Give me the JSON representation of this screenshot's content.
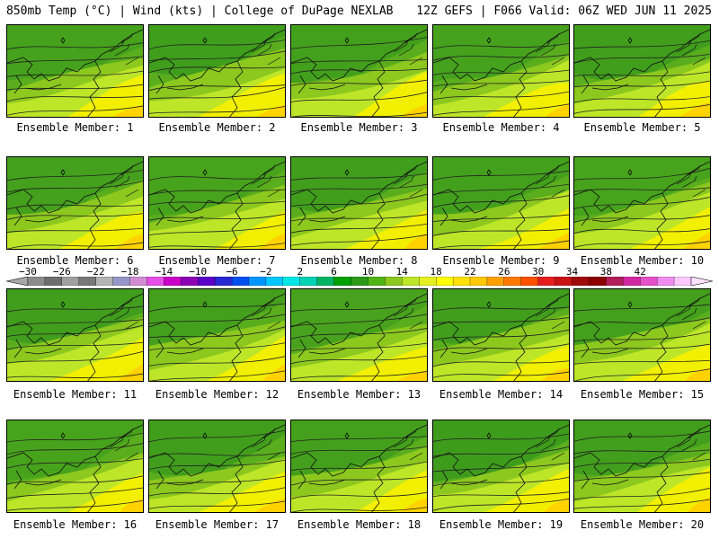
{
  "header": {
    "title": "850mb Temp (°C) | Wind (kts) | College of DuPage NEXLAB",
    "run_info": "12Z GEFS | F066 Valid: 06Z WED JUN 11 2025"
  },
  "colorbar": {
    "labels": [
      "-30",
      "-26",
      "-22",
      "-18",
      "-14",
      "-10",
      "-6",
      "-2",
      "2",
      "6",
      "10",
      "14",
      "18",
      "22",
      "26",
      "30",
      "34",
      "38",
      "42"
    ],
    "colors": [
      "#8c8c8c",
      "#6e6e6e",
      "#a0a0a0",
      "#787878",
      "#b4b4b4",
      "#9696c8",
      "#d28cd2",
      "#e650e6",
      "#c800c8",
      "#8c00b4",
      "#5a00c8",
      "#2828d2",
      "#0050f0",
      "#0096ff",
      "#00c8ff",
      "#00e6e6",
      "#00d2b4",
      "#00b464",
      "#00a000",
      "#2a9a16",
      "#50b414",
      "#8cc81e",
      "#bee628",
      "#e6f01e",
      "#ffff00",
      "#ffe100",
      "#ffc800",
      "#ffa000",
      "#ff7800",
      "#ff5000",
      "#e61e1e",
      "#c81414",
      "#a00a0a",
      "#8c0000",
      "#b41e5a",
      "#d228a0",
      "#e650c8",
      "#f08cf0",
      "#ffc8ff"
    ]
  },
  "panels": [
    {
      "label": "Ensemble Member: 1"
    },
    {
      "label": "Ensemble Member: 2"
    },
    {
      "label": "Ensemble Member: 3"
    },
    {
      "label": "Ensemble Member: 4"
    },
    {
      "label": "Ensemble Member: 5"
    },
    {
      "label": "Ensemble Member: 6"
    },
    {
      "label": "Ensemble Member: 7"
    },
    {
      "label": "Ensemble Member: 8"
    },
    {
      "label": "Ensemble Member: 9"
    },
    {
      "label": "Ensemble Member: 10"
    },
    {
      "label": "Ensemble Member: 11"
    },
    {
      "label": "Ensemble Member: 12"
    },
    {
      "label": "Ensemble Member: 13"
    },
    {
      "label": "Ensemble Member: 14"
    },
    {
      "label": "Ensemble Member: 15"
    },
    {
      "label": "Ensemble Member: 16"
    },
    {
      "label": "Ensemble Member: 17"
    },
    {
      "label": "Ensemble Member: 18"
    },
    {
      "label": "Ensemble Member: 19"
    },
    {
      "label": "Ensemble Member: 20"
    }
  ],
  "map_colors": {
    "dark_green": "#3a9a1c",
    "green": "#5aae1e",
    "light_green": "#8cc81e",
    "yellow_green": "#bee628",
    "yellow": "#f2f000",
    "gold": "#ffd200",
    "orange": "#ffb400"
  }
}
